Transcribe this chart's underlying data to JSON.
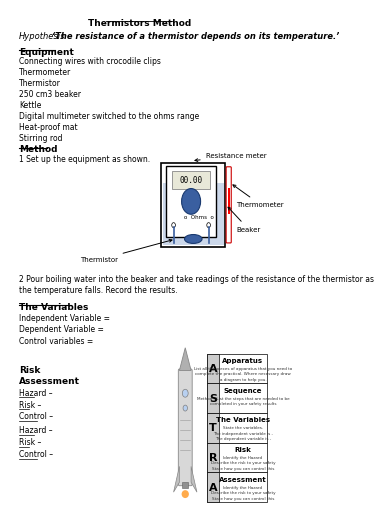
{
  "title": "Thermistors Method",
  "hypothesis_label": "Hypothesis",
  "hypothesis_text": "‘The resistance of a thermistor depends on its temperature.’",
  "equipment_heading": "Equipment",
  "equipment_items": [
    "Connecting wires with crocodile clips",
    "Thermometer",
    "Thermistor",
    "250 cm3 beaker",
    "Kettle",
    "Digital multimeter switched to the ohms range",
    "Heat-proof mat",
    "Stirring rod"
  ],
  "method_heading": "Method",
  "method_step1": "1 Set up the equipment as shown.",
  "method_step2": "2 Pour boiling water into the beaker and take readings of the resistance of the thermistor as\nthe temperature falls. Record the results.",
  "variables_heading": "The Variables",
  "independent": "Independent Variable =",
  "dependent": "Dependent Variable =",
  "control": "Control variables =",
  "risk_line1": "Risk",
  "risk_line2": "Assessment",
  "hazard1": "Hazard –",
  "risk1": "Risk –",
  "control1": "Control –",
  "hazard2": "Hazard –",
  "risk2": "Risk –",
  "control2": "Control –",
  "label_resistance": "Resistance meter",
  "label_thermometer": "Thermometer",
  "label_beaker": "Beaker",
  "label_thermistor": "Thermistor",
  "meter_display": "00.00",
  "meter_unit": "Ohms",
  "astra_letters": [
    "A",
    "S",
    "T",
    "R",
    "A"
  ],
  "astra_headings": [
    "Apparatus",
    "Sequence",
    "The Variables",
    "Risk",
    "Assessment"
  ],
  "astra_texts": [
    "List all the pieces of apparatus that you need to\ncomplete the practical. Where necessary draw\na diagram to help you.",
    "Method - List the steps that are needed to be\ncompleted in your safety results",
    "State the variables.\nThe independent variable is -\nThe dependent variable is -\nThe control variables are - ... I will keep\nalways the same so that this is a fair test. State\nhow these will be kept the same each time.",
    "Identify the Hazard\nDescribe the risk to your safety\nState how you can control this",
    "Identify the Hazard\nDescribe the risk to your safety\nState how you can control this"
  ],
  "bg_color": "#ffffff"
}
